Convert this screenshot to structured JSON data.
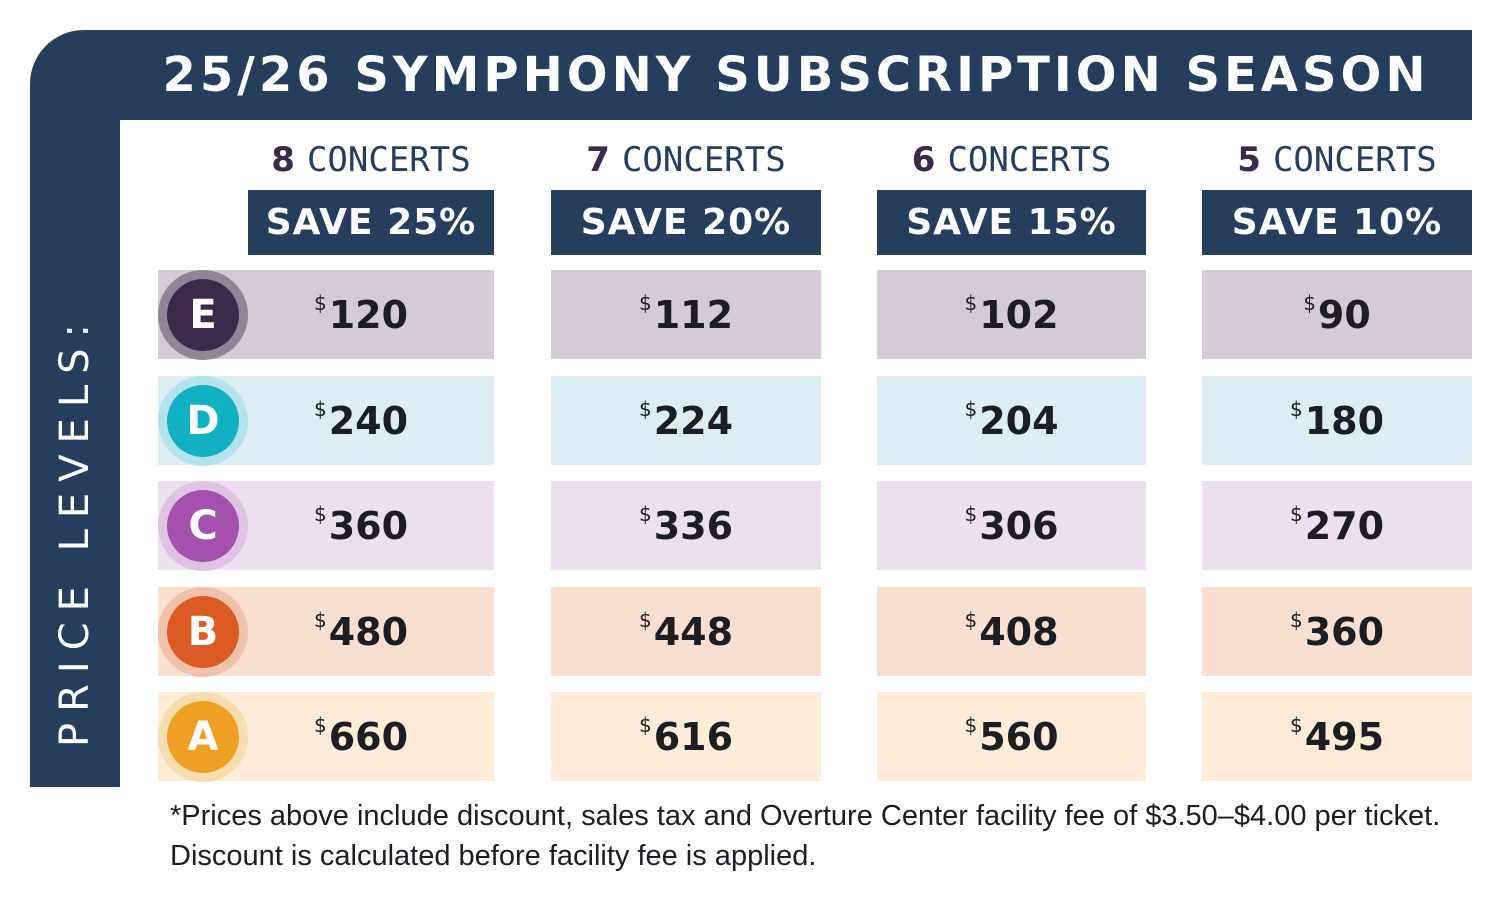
{
  "title": "25/26 SYMPHONY SUBSCRIPTION SEASON",
  "vertical_label": "PRICE LEVELS:",
  "columns": [
    {
      "num": "8",
      "word": "CONCERTS",
      "save": "SAVE 25%"
    },
    {
      "num": "7",
      "word": "CONCERTS",
      "save": "SAVE 20%"
    },
    {
      "num": "6",
      "word": "CONCERTS",
      "save": "SAVE 15%"
    },
    {
      "num": "5",
      "word": "CONCERTS",
      "save": "SAVE 10%"
    }
  ],
  "currency_symbol": "$",
  "levels": [
    {
      "letter": "E",
      "badge_color": "#3c2a4d",
      "ring_color": "#8f8597",
      "row_color": "#d5cbd7",
      "prices": [
        "120",
        "112",
        "102",
        "90"
      ]
    },
    {
      "letter": "D",
      "badge_color": "#12b0c3",
      "ring_color": "#b5e3ea",
      "row_color": "#dceef3",
      "prices": [
        "240",
        "224",
        "204",
        "180"
      ]
    },
    {
      "letter": "C",
      "badge_color": "#a351ad",
      "ring_color": "#dec3e2",
      "row_color": "#ece0ef",
      "prices": [
        "360",
        "336",
        "306",
        "270"
      ]
    },
    {
      "letter": "B",
      "badge_color": "#dc5a24",
      "ring_color": "#f0c1ab",
      "row_color": "#f8dfcf",
      "prices": [
        "480",
        "448",
        "408",
        "360"
      ]
    },
    {
      "letter": "A",
      "badge_color": "#eea024",
      "ring_color": "#f7dcb0",
      "row_color": "#fcecd8",
      "prices": [
        "660",
        "616",
        "560",
        "495"
      ]
    }
  ],
  "footnote": {
    "line1": "*Prices above include discount, sales tax and Overture Center facility fee of $3.50–$4.00 per ticket.",
    "line2": "Discount is calculated before facility fee is applied."
  },
  "colors": {
    "navy": "#263e5e",
    "purple_number": "#3c2a4d"
  }
}
